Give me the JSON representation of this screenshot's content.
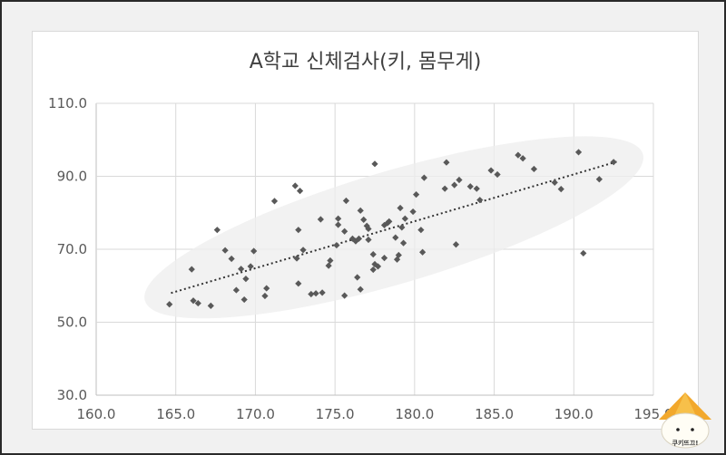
{
  "chart_data": {
    "type": "scatter",
    "title": "A학교 신체검사(키, 몸무게)",
    "xlim": [
      160,
      195
    ],
    "ylim": [
      30,
      110
    ],
    "x_ticks": [
      160,
      165,
      170,
      175,
      180,
      185,
      190,
      195
    ],
    "y_ticks": [
      30,
      50,
      70,
      90,
      110
    ],
    "x_tick_labels": [
      "160.0",
      "165.0",
      "170.0",
      "175.0",
      "180.0",
      "185.0",
      "190.0",
      "195.0"
    ],
    "y_tick_labels": [
      "30.0",
      "50.0",
      "70.0",
      "90.0",
      "110.0"
    ],
    "grid": "vertical and horizontal",
    "trendline": {
      "type": "linear",
      "style": "dotted",
      "x_range": [
        164.7,
        192.7
      ],
      "y_range": [
        58.0,
        94.0
      ]
    },
    "highlight_ellipse": true,
    "marker": "diamond",
    "marker_color": "#595959",
    "points": [
      [
        164.6,
        54.9
      ],
      [
        166.0,
        64.5
      ],
      [
        166.1,
        55.9
      ],
      [
        166.4,
        55.2
      ],
      [
        167.2,
        54.5
      ],
      [
        167.6,
        75.3
      ],
      [
        168.1,
        69.7
      ],
      [
        168.5,
        67.4
      ],
      [
        168.8,
        58.8
      ],
      [
        169.1,
        64.6
      ],
      [
        169.3,
        56.2
      ],
      [
        169.4,
        61.9
      ],
      [
        169.7,
        65.3
      ],
      [
        169.9,
        69.5
      ],
      [
        170.6,
        57.2
      ],
      [
        170.7,
        59.3
      ],
      [
        171.2,
        83.2
      ],
      [
        172.5,
        87.4
      ],
      [
        172.6,
        67.5
      ],
      [
        172.7,
        75.3
      ],
      [
        172.7,
        60.6
      ],
      [
        172.8,
        86.0
      ],
      [
        173.0,
        69.8
      ],
      [
        173.5,
        57.7
      ],
      [
        173.8,
        57.9
      ],
      [
        174.1,
        78.2
      ],
      [
        174.2,
        58.1
      ],
      [
        174.6,
        65.5
      ],
      [
        174.7,
        66.9
      ],
      [
        175.1,
        71.1
      ],
      [
        175.2,
        76.7
      ],
      [
        175.2,
        78.4
      ],
      [
        175.6,
        74.9
      ],
      [
        175.6,
        57.3
      ],
      [
        175.7,
        83.3
      ],
      [
        176.1,
        72.9
      ],
      [
        176.3,
        72.2
      ],
      [
        176.4,
        62.3
      ],
      [
        176.5,
        72.9
      ],
      [
        176.6,
        80.6
      ],
      [
        176.6,
        59.0
      ],
      [
        176.8,
        78.1
      ],
      [
        177.0,
        76.4
      ],
      [
        177.1,
        72.6
      ],
      [
        177.1,
        75.6
      ],
      [
        177.4,
        64.4
      ],
      [
        177.4,
        68.6
      ],
      [
        177.5,
        93.4
      ],
      [
        177.5,
        65.9
      ],
      [
        177.7,
        65.3
      ],
      [
        178.1,
        76.6
      ],
      [
        178.1,
        67.6
      ],
      [
        178.3,
        77.2
      ],
      [
        178.4,
        77.6
      ],
      [
        178.8,
        73.2
      ],
      [
        178.9,
        67.2
      ],
      [
        179.0,
        68.4
      ],
      [
        179.1,
        81.3
      ],
      [
        179.2,
        76.0
      ],
      [
        179.3,
        71.7
      ],
      [
        179.4,
        78.4
      ],
      [
        179.9,
        80.3
      ],
      [
        180.1,
        85.0
      ],
      [
        180.4,
        75.3
      ],
      [
        180.5,
        69.2
      ],
      [
        180.6,
        89.6
      ],
      [
        181.9,
        86.6
      ],
      [
        182.0,
        93.8
      ],
      [
        182.5,
        87.6
      ],
      [
        182.6,
        71.3
      ],
      [
        182.8,
        89.0
      ],
      [
        183.5,
        87.2
      ],
      [
        183.9,
        86.6
      ],
      [
        184.1,
        83.5
      ],
      [
        184.8,
        91.6
      ],
      [
        185.2,
        90.5
      ],
      [
        186.5,
        95.8
      ],
      [
        186.8,
        94.9
      ],
      [
        187.5,
        92.0
      ],
      [
        188.8,
        88.3
      ],
      [
        189.2,
        86.5
      ],
      [
        190.3,
        96.6
      ],
      [
        190.6,
        68.9
      ],
      [
        191.6,
        89.2
      ],
      [
        192.5,
        93.9
      ]
    ]
  },
  "mascot": {
    "caption": "쿠키뜨끄!"
  }
}
